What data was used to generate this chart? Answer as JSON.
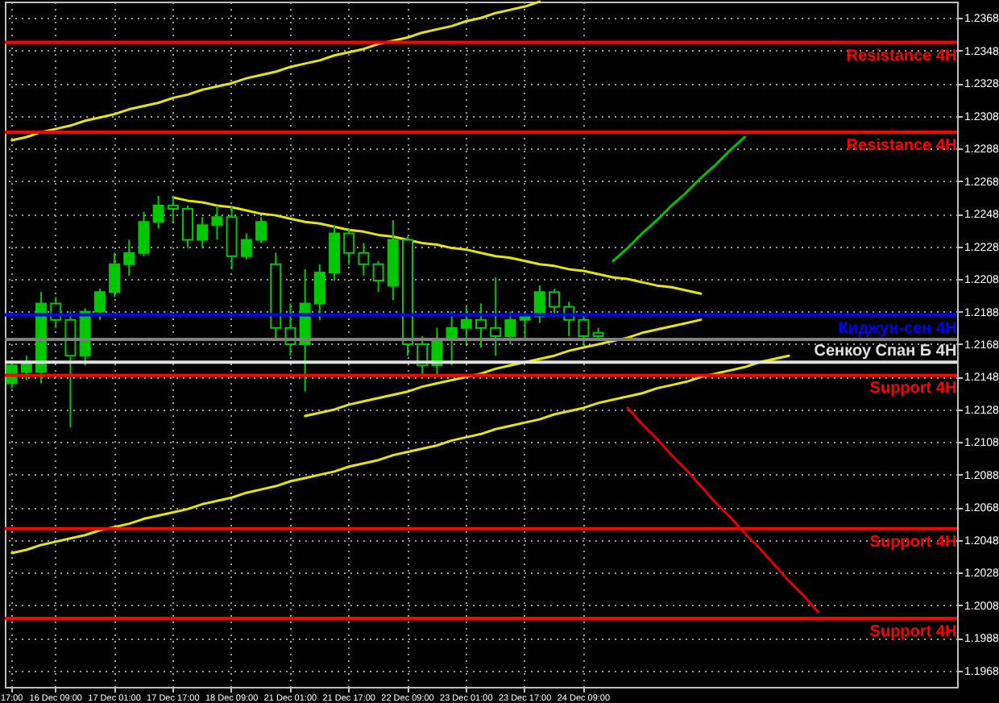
{
  "chart_data": {
    "type": "candlestick",
    "categories": [
      "17:00",
      null,
      null,
      "16 Dec 09:00",
      null,
      null,
      null,
      "17 Dec 01:00",
      null,
      null,
      null,
      "17 Dec 17:00",
      null,
      null,
      null,
      "18 Dec 09:00",
      null,
      null,
      null,
      "21 Dec 01:00",
      null,
      null,
      null,
      "21 Dec 17:00",
      null,
      null,
      null,
      "22 Dec 09:00",
      null,
      null,
      null,
      "23 Dec 01:00",
      null,
      null,
      null,
      "23 Dec 17:00",
      null,
      null,
      null,
      "24 Dec 09:00",
      null,
      null,
      null,
      null,
      null,
      null,
      null,
      null,
      null,
      null,
      null,
      null,
      null,
      null,
      null,
      null,
      null,
      null,
      null,
      null,
      null,
      null,
      null,
      null,
      null
    ],
    "ylim": [
      1.1958,
      1.2378
    ],
    "yticks": [
      1.1968,
      1.1988,
      1.2008,
      1.2028,
      1.2048,
      1.2068,
      1.2088,
      1.2108,
      1.2128,
      1.2148,
      1.2168,
      1.2188,
      1.2208,
      1.2228,
      1.2248,
      1.2268,
      1.2288,
      1.2308,
      1.2328,
      1.2348,
      1.2368
    ],
    "grid": true,
    "ref_lines": [
      {
        "axis": "y",
        "value": 1.2353,
        "label": "Resistance 4H",
        "color": "#ff0000"
      },
      {
        "axis": "y",
        "value": 1.2298,
        "label": "Resistance 4H",
        "color": "#ff0000"
      },
      {
        "axis": "y",
        "value": 1.2186,
        "label": "Киджун-сен 4H",
        "color": "#0000ff"
      },
      {
        "axis": "y",
        "value": 1.2171,
        "color": "#808080"
      },
      {
        "axis": "y",
        "value": 1.2157,
        "label": "Сенкоу Спан Б 4H",
        "color": "#e0e0e0"
      },
      {
        "axis": "y",
        "value": 1.2149,
        "label": "Support 4H",
        "color": "#ff0000"
      },
      {
        "axis": "y",
        "value": 1.2055,
        "label": "Support 4H",
        "color": "#ff0000"
      },
      {
        "axis": "y",
        "value": 1.2,
        "label": "Support 4H",
        "color": "#ff0000"
      }
    ],
    "series": [
      {
        "type": "line",
        "color": "#e6e600",
        "values": [
          1.2293,
          1.2295,
          1.2298,
          1.23,
          1.2302,
          1.2305,
          1.2307,
          1.2309,
          1.2312,
          1.2314,
          1.2316,
          1.2319,
          1.2321,
          1.2324,
          1.2326,
          1.2328,
          1.2331,
          1.2333,
          1.2335,
          1.2338,
          1.234,
          1.2342,
          1.2345,
          1.2347,
          1.2349,
          1.2352,
          1.2354,
          1.2356,
          1.2359,
          1.2361,
          1.2363,
          1.2366,
          1.2368,
          1.2371,
          1.2373,
          1.2375,
          1.2378,
          null,
          null,
          null,
          null,
          null,
          null,
          null,
          null,
          null,
          null,
          null,
          null,
          null,
          null,
          null,
          null,
          null,
          null,
          null,
          null,
          null,
          null,
          null,
          null,
          null,
          null,
          null,
          null
        ]
      },
      {
        "type": "line",
        "color": "#e6e600",
        "values": [
          null,
          null,
          null,
          null,
          null,
          null,
          null,
          null,
          null,
          null,
          null,
          1.2258,
          1.2256,
          1.2255,
          1.2253,
          1.2252,
          1.225,
          1.2248,
          1.2247,
          1.2245,
          1.2243,
          1.2242,
          1.224,
          1.2238,
          1.2237,
          1.2235,
          1.2234,
          1.2232,
          1.223,
          1.2229,
          1.2227,
          1.2226,
          1.2224,
          1.2222,
          1.2221,
          1.2219,
          1.2217,
          1.2216,
          1.2214,
          1.2213,
          1.2211,
          1.2209,
          1.2208,
          1.2206,
          1.2204,
          1.2203,
          1.2201,
          1.2199,
          null,
          null,
          null,
          null,
          null,
          null,
          null,
          null,
          null,
          null,
          null,
          null,
          null,
          null,
          null,
          null,
          null
        ]
      },
      {
        "type": "line",
        "color": "#e6e600",
        "values": [
          null,
          null,
          null,
          null,
          null,
          null,
          null,
          null,
          null,
          null,
          null,
          null,
          null,
          null,
          null,
          null,
          null,
          null,
          null,
          null,
          1.2124,
          1.2126,
          1.2128,
          1.2131,
          1.2133,
          1.2135,
          1.2137,
          1.2139,
          1.2142,
          1.2144,
          1.2146,
          1.2148,
          1.215,
          1.2153,
          1.2155,
          1.2157,
          1.2159,
          1.2161,
          1.2164,
          1.2166,
          1.2168,
          1.217,
          1.2172,
          1.2175,
          1.2177,
          1.2179,
          1.2181,
          1.2183,
          null,
          null,
          null,
          null,
          null,
          null,
          null,
          null,
          null,
          null,
          null,
          null,
          null,
          null,
          null,
          null,
          null
        ]
      },
      {
        "type": "line",
        "color": "#e6e600",
        "values": [
          1.204,
          1.2042,
          1.2045,
          1.2047,
          1.2049,
          1.2051,
          1.2054,
          1.2056,
          1.2058,
          1.2061,
          1.2063,
          1.2065,
          1.2067,
          1.207,
          1.2072,
          1.2074,
          1.2077,
          1.2079,
          1.2081,
          1.2084,
          1.2086,
          1.2088,
          1.209,
          1.2093,
          1.2095,
          1.2097,
          1.21,
          1.2102,
          1.2104,
          1.2106,
          1.2109,
          1.2111,
          1.2113,
          1.2116,
          1.2118,
          1.212,
          1.2122,
          1.2125,
          1.2127,
          1.2129,
          1.2132,
          1.2134,
          1.2136,
          1.2138,
          1.2141,
          1.2143,
          1.2145,
          1.2148,
          1.215,
          1.2152,
          1.2154,
          1.2157,
          1.2159,
          1.2161,
          null,
          null,
          null,
          null,
          null,
          null,
          null,
          null,
          null,
          null,
          null
        ]
      },
      {
        "type": "line",
        "color": "#00c000",
        "values": [
          null,
          null,
          null,
          null,
          null,
          null,
          null,
          null,
          null,
          null,
          null,
          null,
          null,
          null,
          null,
          null,
          null,
          null,
          null,
          null,
          null,
          null,
          null,
          null,
          null,
          null,
          null,
          null,
          null,
          null,
          null,
          null,
          null,
          null,
          null,
          null,
          null,
          null,
          null,
          null,
          null,
          1.2219,
          1.2227,
          1.2236,
          1.2244,
          1.2253,
          1.2261,
          1.227,
          1.2278,
          1.2287,
          1.2295,
          null,
          null,
          null,
          null,
          null,
          null,
          null,
          null,
          null,
          null,
          null,
          null,
          null,
          null
        ]
      },
      {
        "type": "line",
        "color": "#e00000",
        "values": [
          null,
          null,
          null,
          null,
          null,
          null,
          null,
          null,
          null,
          null,
          null,
          null,
          null,
          null,
          null,
          null,
          null,
          null,
          null,
          null,
          null,
          null,
          null,
          null,
          null,
          null,
          null,
          null,
          null,
          null,
          null,
          null,
          null,
          null,
          null,
          null,
          null,
          null,
          null,
          null,
          null,
          null,
          1.2129,
          1.2119,
          1.211,
          1.21,
          1.2091,
          1.2081,
          1.2071,
          1.2062,
          1.2052,
          1.2043,
          1.2033,
          1.2023,
          1.2014,
          1.2004,
          null,
          null,
          null,
          null,
          null,
          null,
          null,
          null,
          null
        ]
      },
      {
        "type": "candlestick",
        "color": "#00c800",
        "ohlc": [
          [
            1.2144,
            1.2158,
            1.2141,
            1.2155
          ],
          [
            1.2151,
            1.2161,
            1.2146,
            1.2157
          ],
          [
            1.2151,
            1.22,
            1.2144,
            1.2193
          ],
          [
            1.2193,
            1.2197,
            1.2178,
            1.2183
          ],
          [
            1.2183,
            1.2188,
            1.2117,
            1.2161
          ],
          [
            1.2161,
            1.219,
            1.2155,
            1.2188
          ],
          [
            1.2188,
            1.2202,
            1.2183,
            1.22
          ],
          [
            1.22,
            1.2224,
            1.2197,
            1.2217
          ],
          [
            1.2217,
            1.2232,
            1.221,
            1.2224
          ],
          [
            1.2224,
            1.2249,
            1.2222,
            1.2243
          ],
          [
            1.2243,
            1.2259,
            1.2239,
            1.2253
          ],
          [
            1.2253,
            1.2259,
            1.2243,
            1.2251
          ],
          [
            1.2251,
            1.2253,
            1.2227,
            1.2232
          ],
          [
            1.2232,
            1.2246,
            1.2227,
            1.2241
          ],
          [
            1.2241,
            1.2253,
            1.2232,
            1.2246
          ],
          [
            1.2246,
            1.2253,
            1.2214,
            1.2222
          ],
          [
            1.2222,
            1.2236,
            1.222,
            1.2232
          ],
          [
            1.2232,
            1.2246,
            1.223,
            1.2243
          ],
          [
            1.2217,
            1.2224,
            1.2171,
            1.2178
          ],
          [
            1.2178,
            1.2193,
            1.2161,
            1.2168
          ],
          [
            1.2168,
            1.2214,
            1.2139,
            1.2193
          ],
          [
            1.2193,
            1.2217,
            1.2183,
            1.2212
          ],
          [
            1.2212,
            1.2241,
            1.2207,
            1.2236
          ],
          [
            1.2236,
            1.2239,
            1.2217,
            1.2224
          ],
          [
            1.2224,
            1.223,
            1.221,
            1.2217
          ],
          [
            1.2217,
            1.2219,
            1.22,
            1.2207
          ],
          [
            1.2204,
            1.2244,
            1.2195,
            1.2232
          ],
          [
            1.2232,
            1.2234,
            1.2161,
            1.2168
          ],
          [
            1.2168,
            1.2173,
            1.2149,
            1.2155
          ],
          [
            1.2155,
            1.2178,
            1.2149,
            1.2171
          ],
          [
            1.2171,
            1.2188,
            1.2155,
            1.2178
          ],
          [
            1.2178,
            1.2191,
            1.2168,
            1.2183
          ],
          [
            1.2183,
            1.2193,
            1.2166,
            1.2178
          ],
          [
            1.2178,
            1.2209,
            1.2161,
            1.2173
          ],
          [
            1.2173,
            1.2188,
            1.2168,
            1.2183
          ],
          [
            1.2183,
            1.2188,
            1.2171,
            1.2185
          ],
          [
            1.2185,
            1.2204,
            1.2181,
            1.22
          ],
          [
            1.22,
            1.2202,
            1.2185,
            1.2191
          ],
          [
            1.2191,
            1.2194,
            1.2173,
            1.2183
          ],
          [
            1.2183,
            1.2188,
            1.2168,
            1.2173
          ],
          [
            1.2175,
            1.2178,
            1.217,
            1.2173
          ],
          null,
          null,
          null,
          null,
          null,
          null,
          null,
          null,
          null,
          null,
          null,
          null,
          null,
          null,
          null,
          null,
          null,
          null,
          null,
          null,
          null,
          null,
          null,
          null
        ]
      }
    ]
  }
}
